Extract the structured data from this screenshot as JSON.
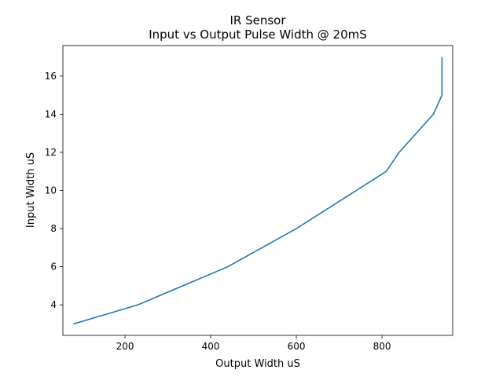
{
  "chart_data": {
    "type": "line",
    "title": "IR Sensor",
    "subtitle": "Input vs Output Pulse Width @ 20mS",
    "xlabel": "Output Width uS",
    "ylabel": "Input Width uS",
    "xlim": [
      55,
      965
    ],
    "ylim": [
      2.4,
      17.6
    ],
    "xticks": [
      200,
      400,
      600,
      800
    ],
    "yticks": [
      4,
      6,
      8,
      10,
      12,
      14,
      16
    ],
    "grid": false,
    "series": [
      {
        "color": "#1f77b4",
        "x": [
          80,
          230,
          335,
          440,
          600,
          810,
          840,
          920,
          940,
          940
        ],
        "y": [
          3,
          4,
          5,
          6,
          8,
          11,
          12,
          14,
          15,
          17
        ]
      }
    ]
  }
}
